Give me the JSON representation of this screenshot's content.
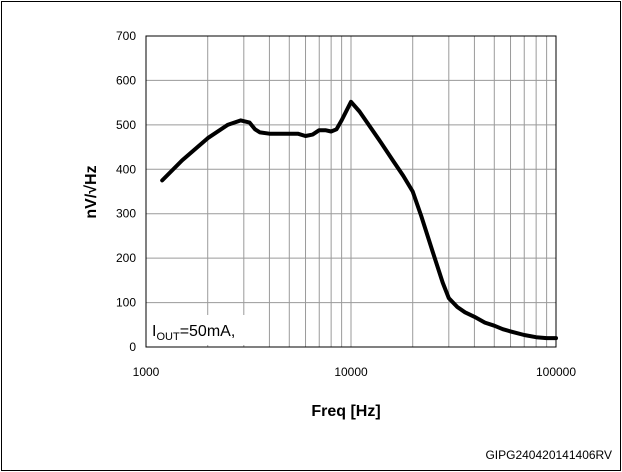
{
  "chart_data": {
    "type": "line",
    "xscale": "log",
    "xlim": [
      1000,
      100000
    ],
    "ylim": [
      0,
      700
    ],
    "grid": true,
    "xlabel": "Freq [Hz]",
    "ylabel": "nV/√Hz",
    "xticks": [
      1000,
      10000,
      100000
    ],
    "xtick_labels": [
      "1000",
      "10000",
      "100000"
    ],
    "yticks": [
      0,
      100,
      200,
      300,
      400,
      500,
      600,
      700
    ],
    "ytick_labels": [
      "0",
      "100",
      "200",
      "300",
      "400",
      "500",
      "600",
      "700"
    ],
    "annotation": {
      "main": "I",
      "sub": "OUT",
      "rest": "=50mA,"
    },
    "series": [
      {
        "x": [
          1200,
          1500,
          2000,
          2500,
          2900,
          3200,
          3400,
          3600,
          4000,
          4500,
          5000,
          5500,
          6000,
          6500,
          7000,
          7500,
          8000,
          8500,
          9000,
          10000,
          11000,
          12000,
          14000,
          16000,
          18000,
          20000,
          22000,
          25000,
          28000,
          30000,
          33000,
          36000,
          40000,
          45000,
          50000,
          55000,
          60000,
          70000,
          80000,
          90000,
          100000
        ],
        "y": [
          375,
          420,
          470,
          500,
          510,
          505,
          490,
          483,
          480,
          480,
          480,
          480,
          475,
          478,
          488,
          488,
          485,
          490,
          510,
          552,
          530,
          505,
          460,
          420,
          385,
          350,
          295,
          215,
          145,
          110,
          90,
          78,
          68,
          55,
          48,
          40,
          35,
          27,
          22,
          20,
          20
        ]
      }
    ]
  },
  "footer": {
    "code": "GIPG240420141406RV"
  },
  "colors": {
    "line": "#000000",
    "grid": "#9a9a9a",
    "axis": "#000000"
  }
}
